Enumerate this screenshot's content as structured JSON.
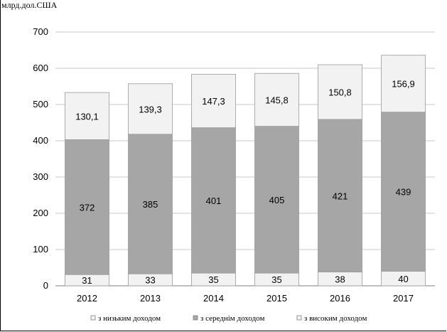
{
  "chart_data": {
    "type": "bar",
    "stacked": true,
    "unit_label": "млрд.дол.США",
    "categories": [
      "2012",
      "2013",
      "2014",
      "2015",
      "2016",
      "2017"
    ],
    "series": [
      {
        "name": "з низьким доходом",
        "values": [
          31,
          33,
          35,
          35,
          38,
          40
        ],
        "labels": [
          "31",
          "33",
          "35",
          "35",
          "38",
          "40"
        ],
        "color": "#f2f2f2"
      },
      {
        "name": "з середнім доходом",
        "values": [
          372,
          385,
          401,
          405,
          421,
          439
        ],
        "labels": [
          "372",
          "385",
          "401",
          "405",
          "421",
          "439"
        ],
        "color": "#a6a6a6"
      },
      {
        "name": "з високим доходом",
        "values": [
          130.1,
          139.3,
          147.3,
          145.8,
          150.8,
          156.9
        ],
        "labels": [
          "130,1",
          "139,3",
          "147,3",
          "145,8",
          "150,8",
          "156,9"
        ],
        "color": "#f2f2f2"
      }
    ],
    "ylim": [
      0,
      700
    ],
    "yticks": [
      "0",
      "100",
      "200",
      "300",
      "400",
      "500",
      "600",
      "700"
    ],
    "grid": true,
    "legend_position": "bottom"
  }
}
